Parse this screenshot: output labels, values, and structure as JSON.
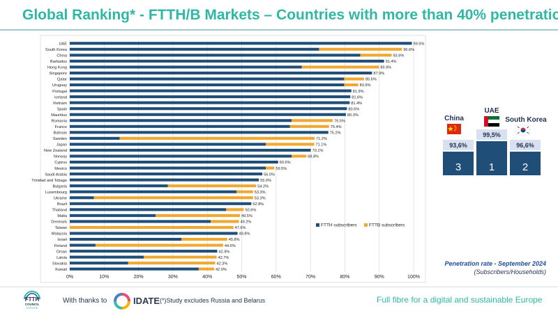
{
  "header": {
    "title": "Global Ranking* - FTTH/B Markets – Countries with more than 40% penetration"
  },
  "chart_data": {
    "type": "bar",
    "orientation": "horizontal",
    "stacked": true,
    "categories": [
      "UAE",
      "South Korea",
      "China",
      "Barbados",
      "Hong Kong",
      "Singapore",
      "Qatar",
      "Uruguay",
      "Portugal",
      "Iceland",
      "Vietnam",
      "Spain",
      "Mauritius",
      "Romania",
      "France",
      "Bahrain",
      "Sweden",
      "Japan",
      "New Zealand",
      "Norway",
      "Cyprus",
      "Mexico",
      "Saudi Arabia",
      "Trinidad and Tobago",
      "Bulgaria",
      "Luxembourg",
      "Ukraine",
      "Brazil",
      "Thailand",
      "Malta",
      "Denmark",
      "Taiwan",
      "Malaysia",
      "Israel",
      "Finland",
      "Oman",
      "Latvia",
      "Slovakia",
      "Kuwait"
    ],
    "series": [
      {
        "name": "FTTH subscribers",
        "color": "#1f4e79",
        "values": [
          99.5,
          72.5,
          84.5,
          91.4,
          67.5,
          87.9,
          79.8,
          79.8,
          81.9,
          81.6,
          81.4,
          80.6,
          80.3,
          64.5,
          64.0,
          75.2,
          14.5,
          57.0,
          70.1,
          64.5,
          60.6,
          57.0,
          56.0,
          55.0,
          28.5,
          48.5,
          7.0,
          52.8,
          45.5,
          25.0,
          41.0,
          0,
          48.8,
          32.5,
          7.5,
          42.9,
          21.5,
          17.0,
          37.5
        ]
      },
      {
        "name": "FTTB subscribers",
        "color": "#f0a830",
        "values": [
          0,
          24.1,
          9.1,
          0,
          22.4,
          0,
          5.8,
          4.1,
          0,
          0,
          0,
          0,
          0,
          12.0,
          11.4,
          0,
          56.7,
          14.1,
          0,
          4.3,
          0,
          2.5,
          0,
          0,
          25.7,
          4.8,
          46.3,
          0,
          5.1,
          24.5,
          8.2,
          47.6,
          0,
          13.3,
          37.1,
          0,
          21.2,
          25.3,
          4.5
        ]
      }
    ],
    "totals": [
      "99.5%",
      "96.6%",
      "93.6%",
      "91.4%",
      "89.9%",
      "87.9%",
      "85.6%",
      "83.9%",
      "81.9%",
      "81.6%",
      "81.4%",
      "80.6%",
      "80.3%",
      "76.5%",
      "75.4%",
      "75.2%",
      "71.2%",
      "71.1%",
      "70.1%",
      "68.8%",
      "60.6%",
      "59.5%",
      "56.0%",
      "55.0%",
      "54.2%",
      "53.3%",
      "53.3%",
      "52.8%",
      "50.6%",
      "49.5%",
      "49.2%",
      "47.6%",
      "48.8%",
      "45.8%",
      "44.6%",
      "42.9%",
      "42.7%",
      "42.3%",
      "42.0%"
    ],
    "xlim": [
      0,
      100
    ],
    "x_ticks": [
      "0%",
      "10%",
      "20%",
      "30%",
      "40%",
      "50%",
      "60%",
      "70%",
      "80%",
      "90%",
      "100%"
    ],
    "grid": "vertical",
    "legend_position": "bottom-right",
    "legend": [
      "FTTH subscribers",
      "FTTB subscribers"
    ]
  },
  "podium": {
    "places": [
      {
        "country": "China",
        "value": "93,6%",
        "rank": "3"
      },
      {
        "country": "UAE",
        "value": "99,5%",
        "rank": "1"
      },
      {
        "country": "South Korea",
        "value": "96,6%",
        "rank": "2"
      }
    ],
    "color": "#1f4e79"
  },
  "captions": {
    "penetration": "Penetration rate - September 2024",
    "basis": "(Subscribers/Households)"
  },
  "footer": {
    "logo_line1": "FTTH",
    "logo_line2": "COUNCIL",
    "logo_line3": "EUROPE",
    "thanks": "With thanks to",
    "idate": "IDATE",
    "note": "(*)Study excludes Russia and Belarus",
    "slogan": "Full fibre for a digital and sustainable Europe"
  }
}
